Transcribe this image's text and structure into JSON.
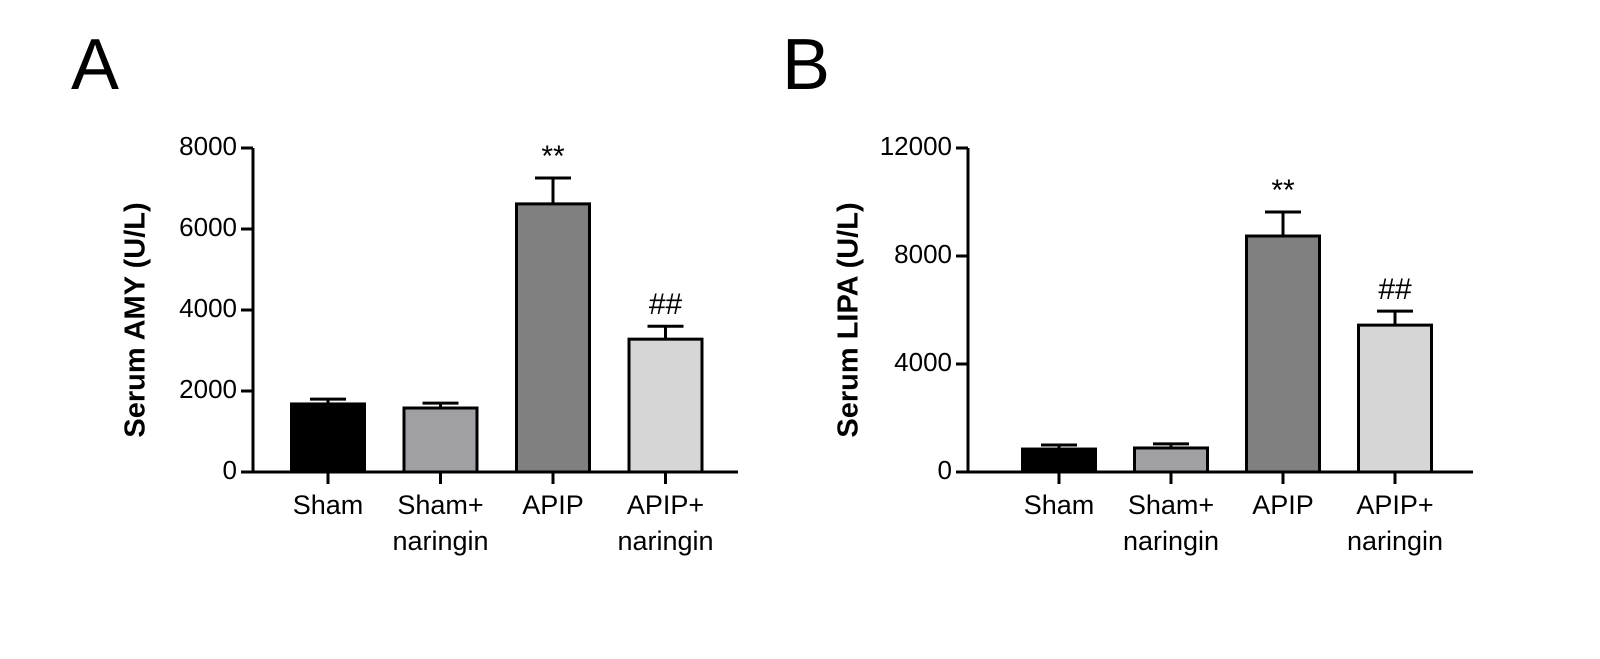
{
  "chart_data": [
    {
      "type": "bar",
      "panel_label": "A",
      "y_label": "Serum AMY (U/L)",
      "categories": [
        "Sham",
        "Sham+\nnaringin",
        "APIP",
        "APIP+\nnaringin"
      ],
      "values": [
        1680,
        1580,
        6620,
        3280
      ],
      "errors": [
        120,
        120,
        640,
        320
      ],
      "colors": [
        "#000000",
        "#a0a0a4",
        "#808080",
        "#d6d6d6"
      ],
      "annotations": [
        {
          "category": "APIP",
          "text": "**"
        },
        {
          "category": "APIP+\nnaringin",
          "text": "##"
        }
      ],
      "ylim": [
        0,
        8000
      ],
      "yticks": [
        0,
        2000,
        4000,
        6000,
        8000
      ]
    },
    {
      "type": "bar",
      "panel_label": "B",
      "y_label": "Serum LIPA (U/L)",
      "categories": [
        "Sham",
        "Sham+\nnaringin",
        "APIP",
        "APIP+\nnaringin"
      ],
      "values": [
        850,
        890,
        8740,
        5440
      ],
      "errors": [
        150,
        150,
        890,
        520
      ],
      "colors": [
        "#000000",
        "#a0a0a4",
        "#808080",
        "#d6d6d6"
      ],
      "annotations": [
        {
          "category": "APIP",
          "text": "**"
        },
        {
          "category": "APIP+\nnaringin",
          "text": "##"
        }
      ],
      "ylim": [
        0,
        12000
      ],
      "yticks": [
        0,
        4000,
        8000,
        12000
      ]
    }
  ]
}
